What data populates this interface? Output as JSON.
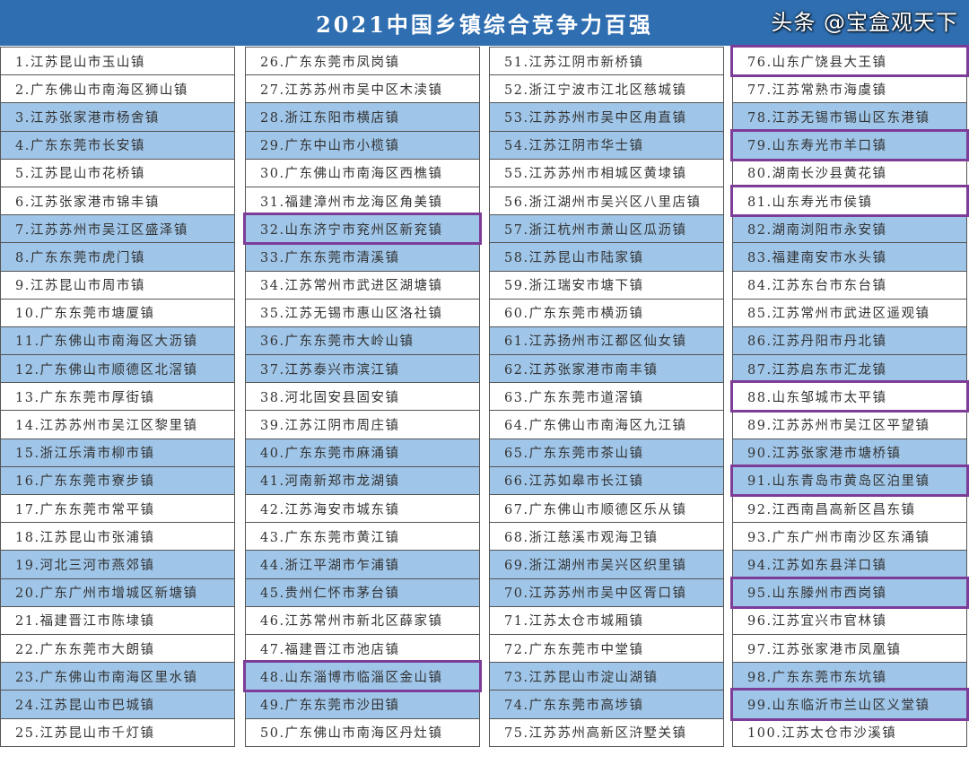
{
  "title": "2021中国乡镇综合竞争力百强",
  "watermark": "头条 @宝盒观天下",
  "highlight_color": "#7d3c98",
  "shade_color": "#9fc5e8",
  "header_color": "#2f6eb0",
  "columns": [
    [
      {
        "text": "1.江苏昆山市玉山镇",
        "highlighted": false
      },
      {
        "text": "2.广东佛山市南海区狮山镇",
        "highlighted": false
      },
      {
        "text": "3.江苏张家港市杨舍镇",
        "highlighted": false
      },
      {
        "text": "4.广东东莞市长安镇",
        "highlighted": false
      },
      {
        "text": "5.江苏昆山市花桥镇",
        "highlighted": false
      },
      {
        "text": "6.江苏张家港市锦丰镇",
        "highlighted": false
      },
      {
        "text": "7.江苏苏州市吴江区盛泽镇",
        "highlighted": false
      },
      {
        "text": "8.广东东莞市虎门镇",
        "highlighted": false
      },
      {
        "text": "9.江苏昆山市周市镇",
        "highlighted": false
      },
      {
        "text": "10.广东东莞市塘厦镇",
        "highlighted": false
      },
      {
        "text": "11.广东佛山市南海区大沥镇",
        "highlighted": false
      },
      {
        "text": "12.广东佛山市顺德区北滘镇",
        "highlighted": false
      },
      {
        "text": "13.广东东莞市厚街镇",
        "highlighted": false
      },
      {
        "text": "14.江苏苏州市吴江区黎里镇",
        "highlighted": false
      },
      {
        "text": "15.浙江乐清市柳市镇",
        "highlighted": false
      },
      {
        "text": "16.广东东莞市寮步镇",
        "highlighted": false
      },
      {
        "text": "17.广东东莞市常平镇",
        "highlighted": false
      },
      {
        "text": "18.江苏昆山市张浦镇",
        "highlighted": false
      },
      {
        "text": "19.河北三河市燕郊镇",
        "highlighted": false
      },
      {
        "text": "20.广东广州市增城区新塘镇",
        "highlighted": false
      },
      {
        "text": "21.福建晋江市陈埭镇",
        "highlighted": false
      },
      {
        "text": "22.广东东莞市大朗镇",
        "highlighted": false
      },
      {
        "text": "23.广东佛山市南海区里水镇",
        "highlighted": false
      },
      {
        "text": "24.江苏昆山市巴城镇",
        "highlighted": false
      },
      {
        "text": "25.江苏昆山市千灯镇",
        "highlighted": false
      }
    ],
    [
      {
        "text": "26.广东东莞市凤岗镇",
        "highlighted": false
      },
      {
        "text": "27.江苏苏州市吴中区木渎镇",
        "highlighted": false
      },
      {
        "text": "28.浙江东阳市横店镇",
        "highlighted": false
      },
      {
        "text": "29.广东中山市小榄镇",
        "highlighted": false
      },
      {
        "text": "30.广东佛山市南海区西樵镇",
        "highlighted": false
      },
      {
        "text": "31.福建漳州市龙海区角美镇",
        "highlighted": false
      },
      {
        "text": "32.山东济宁市兖州区新兖镇",
        "highlighted": true
      },
      {
        "text": "33.广东东莞市清溪镇",
        "highlighted": false
      },
      {
        "text": "34.江苏常州市武进区湖塘镇",
        "highlighted": false
      },
      {
        "text": "35.江苏无锡市惠山区洛社镇",
        "highlighted": false
      },
      {
        "text": "36.广东东莞市大岭山镇",
        "highlighted": false
      },
      {
        "text": "37.江苏泰兴市滨江镇",
        "highlighted": false
      },
      {
        "text": "38.河北固安县固安镇",
        "highlighted": false
      },
      {
        "text": "39.江苏江阴市周庄镇",
        "highlighted": false
      },
      {
        "text": "40.广东东莞市麻涌镇",
        "highlighted": false
      },
      {
        "text": "41.河南新郑市龙湖镇",
        "highlighted": false
      },
      {
        "text": "42.江苏海安市城东镇",
        "highlighted": false
      },
      {
        "text": "43.广东东莞市黄江镇",
        "highlighted": false
      },
      {
        "text": "44.浙江平湖市乍浦镇",
        "highlighted": false
      },
      {
        "text": "45.贵州仁怀市茅台镇",
        "highlighted": false
      },
      {
        "text": "46.江苏常州市新北区薛家镇",
        "highlighted": false
      },
      {
        "text": "47.福建晋江市池店镇",
        "highlighted": false
      },
      {
        "text": "48.山东淄博市临淄区金山镇",
        "highlighted": true
      },
      {
        "text": "49.广东东莞市沙田镇",
        "highlighted": false
      },
      {
        "text": "50.广东佛山市南海区丹灶镇",
        "highlighted": false
      }
    ],
    [
      {
        "text": "51.江苏江阴市新桥镇",
        "highlighted": false
      },
      {
        "text": "52.浙江宁波市江北区慈城镇",
        "highlighted": false
      },
      {
        "text": "53.江苏苏州市吴中区甪直镇",
        "highlighted": false
      },
      {
        "text": "54.江苏江阴市华士镇",
        "highlighted": false
      },
      {
        "text": "55.江苏苏州市相城区黄埭镇",
        "highlighted": false
      },
      {
        "text": "56.浙江湖州市吴兴区八里店镇",
        "highlighted": false
      },
      {
        "text": "57.浙江杭州市萧山区瓜沥镇",
        "highlighted": false
      },
      {
        "text": "58.江苏昆山市陆家镇",
        "highlighted": false
      },
      {
        "text": "59.浙江瑞安市塘下镇",
        "highlighted": false
      },
      {
        "text": "60.广东东莞市横沥镇",
        "highlighted": false
      },
      {
        "text": "61.江苏扬州市江都区仙女镇",
        "highlighted": false
      },
      {
        "text": "62.江苏张家港市南丰镇",
        "highlighted": false
      },
      {
        "text": "63.广东东莞市道滘镇",
        "highlighted": false
      },
      {
        "text": "64.广东佛山市南海区九江镇",
        "highlighted": false
      },
      {
        "text": "65.广东东莞市茶山镇",
        "highlighted": false
      },
      {
        "text": "66.江苏如皋市长江镇",
        "highlighted": false
      },
      {
        "text": "67.广东佛山市顺德区乐从镇",
        "highlighted": false
      },
      {
        "text": "68.浙江慈溪市观海卫镇",
        "highlighted": false
      },
      {
        "text": "69.浙江湖州市吴兴区织里镇",
        "highlighted": false
      },
      {
        "text": "70.江苏苏州市吴中区胥口镇",
        "highlighted": false
      },
      {
        "text": "71.江苏太仓市城厢镇",
        "highlighted": false
      },
      {
        "text": "72.广东东莞市中堂镇",
        "highlighted": false
      },
      {
        "text": "73.江苏昆山市淀山湖镇",
        "highlighted": false
      },
      {
        "text": "74.广东东莞市高埗镇",
        "highlighted": false
      },
      {
        "text": "75.江苏苏州高新区浒墅关镇",
        "highlighted": false
      }
    ],
    [
      {
        "text": "76.山东广饶县大王镇",
        "highlighted": true
      },
      {
        "text": "77.江苏常熟市海虞镇",
        "highlighted": false
      },
      {
        "text": "78.江苏无锡市锡山区东港镇",
        "highlighted": false
      },
      {
        "text": "79.山东寿光市羊口镇",
        "highlighted": true
      },
      {
        "text": "80.湖南长沙县黄花镇",
        "highlighted": false
      },
      {
        "text": "81.山东寿光市侯镇",
        "highlighted": true
      },
      {
        "text": "82.湖南浏阳市永安镇",
        "highlighted": false
      },
      {
        "text": "83.福建南安市水头镇",
        "highlighted": false
      },
      {
        "text": "84.江苏东台市东台镇",
        "highlighted": false
      },
      {
        "text": "85.江苏常州市武进区遥观镇",
        "highlighted": false
      },
      {
        "text": "86.江苏丹阳市丹北镇",
        "highlighted": false
      },
      {
        "text": "87.江苏启东市汇龙镇",
        "highlighted": false
      },
      {
        "text": "88.山东邹城市太平镇",
        "highlighted": true
      },
      {
        "text": "89.江苏苏州市吴江区平望镇",
        "highlighted": false
      },
      {
        "text": "90.江苏张家港市塘桥镇",
        "highlighted": false
      },
      {
        "text": "91.山东青岛市黄岛区泊里镇",
        "highlighted": true
      },
      {
        "text": "92.江西南昌高新区昌东镇",
        "highlighted": false
      },
      {
        "text": "93.广东广州市南沙区东涌镇",
        "highlighted": false
      },
      {
        "text": "94.江苏如东县洋口镇",
        "highlighted": false
      },
      {
        "text": "95.山东滕州市西岗镇",
        "highlighted": true
      },
      {
        "text": "96.江苏宜兴市官林镇",
        "highlighted": false
      },
      {
        "text": "97.江苏张家港市凤凰镇",
        "highlighted": false
      },
      {
        "text": "98.广东东莞市东坑镇",
        "highlighted": false
      },
      {
        "text": "99.山东临沂市兰山区义堂镇",
        "highlighted": true
      },
      {
        "text": "100.江苏太仓市沙溪镇",
        "highlighted": false
      }
    ]
  ]
}
